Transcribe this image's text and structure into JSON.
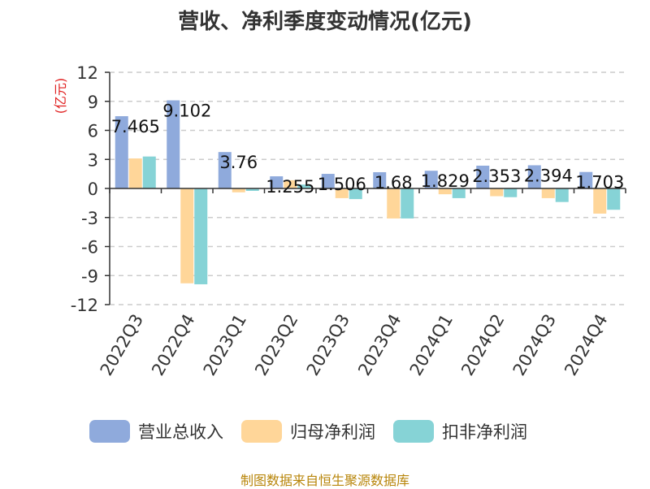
{
  "chart_data": {
    "type": "bar",
    "title": "营收、净利季度变动情况(亿元)",
    "ylabel": "(亿元)",
    "xlabel": "",
    "ylim": [
      -12,
      12
    ],
    "yticks": [
      12,
      9,
      6,
      3,
      0,
      -3,
      -6,
      -9,
      -12
    ],
    "categories": [
      "2022Q3",
      "2022Q4",
      "2023Q1",
      "2023Q2",
      "2023Q3",
      "2023Q4",
      "2024Q1",
      "2024Q2",
      "2024Q3",
      "2024Q4"
    ],
    "series": [
      {
        "name": "营业总收入",
        "color": "#8faadc",
        "values": [
          7.465,
          9.102,
          3.76,
          1.255,
          1.506,
          1.68,
          1.829,
          2.353,
          2.394,
          1.703
        ]
      },
      {
        "name": "归母净利润",
        "color": "#ffd699",
        "values": [
          3.1,
          -9.8,
          -0.4,
          0.85,
          -1.0,
          -3.1,
          -0.6,
          -0.8,
          -1.0,
          -2.6
        ]
      },
      {
        "name": "扣非净利润",
        "color": "#86d3d6",
        "values": [
          3.3,
          -9.9,
          -0.25,
          0.4,
          -1.1,
          -3.1,
          -1.0,
          -0.9,
          -1.4,
          -2.2
        ]
      }
    ],
    "data_labels": [
      "7.465",
      "9.102",
      "3.76",
      "1.255",
      "1.506",
      "1.68",
      "1.829",
      "2.353",
      "2.394",
      "1.703"
    ],
    "grid": true,
    "legend_position": "bottom"
  },
  "source": "制图数据来自恒生聚源数据库"
}
